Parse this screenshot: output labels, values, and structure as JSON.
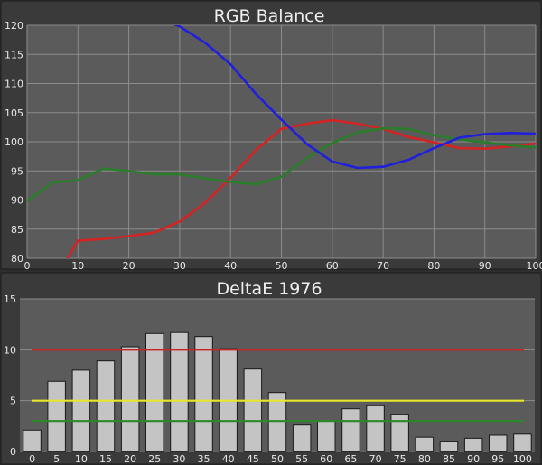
{
  "chart_data": [
    {
      "type": "line",
      "title": "RGB Balance",
      "xlim": [
        0,
        100
      ],
      "ylim": [
        80,
        120
      ],
      "x_ticks": [
        "0",
        "10",
        "20",
        "30",
        "40",
        "50",
        "60",
        "70",
        "80",
        "90",
        "100"
      ],
      "y_ticks": [
        "80",
        "85",
        "90",
        "95",
        "100",
        "105",
        "110",
        "115",
        "120"
      ],
      "grid": true,
      "series": [
        {
          "color": "#d32323",
          "points": [
            [
              5,
              73
            ],
            [
              8,
              80
            ],
            [
              10,
              83
            ],
            [
              15,
              83.3
            ],
            [
              20,
              83.8
            ],
            [
              25,
              84.4
            ],
            [
              30,
              86.3
            ],
            [
              35,
              89.5
            ],
            [
              40,
              93.8
            ],
            [
              45,
              98.6
            ],
            [
              50,
              102.2
            ],
            [
              55,
              103.1
            ],
            [
              60,
              103.7
            ],
            [
              65,
              103.1
            ],
            [
              70,
              102.2
            ],
            [
              75,
              100.8
            ],
            [
              80,
              99.9
            ],
            [
              85,
              98.9
            ],
            [
              90,
              98.8
            ],
            [
              95,
              99.2
            ],
            [
              100,
              99.7
            ]
          ]
        },
        {
          "color": "#2a7d2a",
          "points": [
            [
              0,
              89.8
            ],
            [
              5,
              93
            ],
            [
              10,
              93.4
            ],
            [
              15,
              95.4
            ],
            [
              20,
              95
            ],
            [
              25,
              94.4
            ],
            [
              30,
              94.4
            ],
            [
              35,
              93.7
            ],
            [
              40,
              93.1
            ],
            [
              45,
              92.7
            ],
            [
              50,
              94
            ],
            [
              55,
              97.2
            ],
            [
              60,
              99.8
            ],
            [
              65,
              101.6
            ],
            [
              70,
              102.3
            ],
            [
              75,
              102.2
            ],
            [
              80,
              101.1
            ],
            [
              85,
              100.4
            ],
            [
              90,
              99.9
            ],
            [
              95,
              99.4
            ],
            [
              100,
              99
            ]
          ]
        },
        {
          "color": "#1f1fdc",
          "points": [
            [
              28,
              120.5
            ],
            [
              30,
              119.8
            ],
            [
              35,
              117
            ],
            [
              40,
              113.3
            ],
            [
              45,
              108.2
            ],
            [
              50,
              103.8
            ],
            [
              55,
              99.6
            ],
            [
              60,
              96.6
            ],
            [
              65,
              95.5
            ],
            [
              70,
              95.7
            ],
            [
              75,
              96.9
            ],
            [
              80,
              98.9
            ],
            [
              85,
              100.7
            ],
            [
              90,
              101.3
            ],
            [
              95,
              101.5
            ],
            [
              100,
              101.4
            ]
          ]
        }
      ]
    },
    {
      "type": "bar",
      "title": "DeltaE 1976",
      "categories": [
        "0",
        "5",
        "10",
        "15",
        "20",
        "25",
        "30",
        "35",
        "40",
        "45",
        "50",
        "55",
        "60",
        "65",
        "70",
        "75",
        "80",
        "85",
        "90",
        "95",
        "100"
      ],
      "values": [
        2.1,
        6.9,
        8.0,
        8.9,
        10.3,
        11.6,
        11.7,
        11.3,
        10.1,
        8.1,
        5.8,
        2.6,
        3.0,
        4.2,
        4.5,
        3.6,
        1.4,
        1.0,
        1.3,
        1.6,
        1.7
      ],
      "ylim": [
        0,
        15
      ],
      "y_ticks": [
        "0",
        "5",
        "10",
        "15"
      ],
      "grid": true,
      "bar_color": "#c4c4c4",
      "reference_lines": [
        {
          "value": 10,
          "color": "#cc2222"
        },
        {
          "value": 5,
          "color": "#e6e62a"
        },
        {
          "value": 3,
          "color": "#2a8a2a"
        }
      ]
    }
  ]
}
